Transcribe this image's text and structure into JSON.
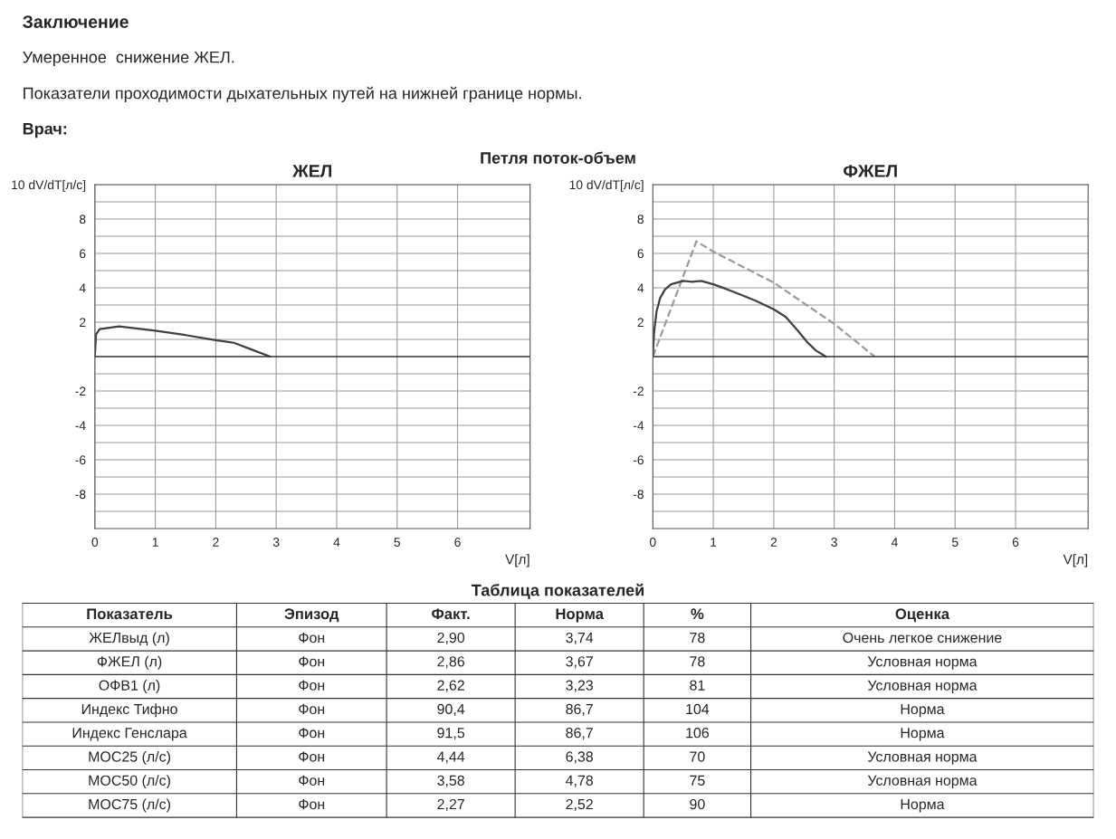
{
  "chart_data": [
    {
      "type": "other",
      "title": "Заключение",
      "annotations": [
        "Умеренное  снижение ЖЕЛ.",
        "Показатели проходимости дыхательных путей на нижней границе нормы.",
        "Врач:"
      ]
    },
    {
      "type": "line",
      "title": "ЖЕЛ",
      "xlabel": "V[л]",
      "annotations": [
        "Петля поток-объем"
      ],
      "xlim": [
        0,
        7.2
      ],
      "ylim": [
        -10,
        10
      ],
      "xticks": [
        0,
        1,
        2,
        3,
        4,
        5,
        6
      ],
      "yticks": [
        {
          "value": -9,
          "label": null
        },
        -8,
        {
          "value": -7,
          "label": null
        },
        -6,
        {
          "value": -5,
          "label": null
        },
        -4,
        {
          "value": -3,
          "label": null
        },
        -2,
        {
          "value": -1,
          "label": null
        },
        {
          "value": 1,
          "label": null
        },
        2,
        {
          "value": 3,
          "label": null
        },
        4,
        {
          "value": 5,
          "label": null
        },
        6,
        {
          "value": 7,
          "label": null
        },
        8,
        {
          "value": 9,
          "label": null
        },
        {
          "value": 10,
          "label": "10 dV/dT[л/с]"
        }
      ],
      "grid": true,
      "ref_lines": [
        {
          "axis": "y",
          "value": 0,
          "color": "#303030"
        }
      ],
      "series": [
        {
          "color": "#404040",
          "line_style": "solid",
          "x": [
            0,
            0.02,
            0.08,
            0.4,
            1.0,
            1.5,
            2.0,
            2.3,
            2.6,
            2.9
          ],
          "values": [
            0,
            1.3,
            1.6,
            1.75,
            1.5,
            1.25,
            0.95,
            0.8,
            0.4,
            0
          ]
        }
      ]
    },
    {
      "type": "line",
      "title": "ФЖЕЛ",
      "xlabel": "V[л]",
      "xlim": [
        0,
        7.2
      ],
      "ylim": [
        -10,
        10
      ],
      "xticks": [
        0,
        1,
        2,
        3,
        4,
        5,
        6
      ],
      "yticks": [
        {
          "value": -9,
          "label": null
        },
        -8,
        {
          "value": -7,
          "label": null
        },
        -6,
        {
          "value": -5,
          "label": null
        },
        -4,
        {
          "value": -3,
          "label": null
        },
        -2,
        {
          "value": -1,
          "label": null
        },
        {
          "value": 1,
          "label": null
        },
        2,
        {
          "value": 3,
          "label": null
        },
        4,
        {
          "value": 5,
          "label": null
        },
        6,
        {
          "value": 7,
          "label": null
        },
        8,
        {
          "value": 9,
          "label": null
        },
        {
          "value": 10,
          "label": "10 dV/dT[л/с]"
        }
      ],
      "grid": true,
      "ref_lines": [
        {
          "axis": "y",
          "value": 0,
          "color": "#303030"
        }
      ],
      "series": [
        {
          "color": "#9a9a9a",
          "line_style": "dashed",
          "x": [
            0,
            0.72,
            1.0,
            2.0,
            3.0,
            3.67
          ],
          "values": [
            0,
            6.7,
            6.1,
            4.3,
            1.9,
            0
          ]
        },
        {
          "color": "#404040",
          "line_style": "solid",
          "x": [
            0,
            0.02,
            0.06,
            0.12,
            0.2,
            0.3,
            0.5,
            0.65,
            0.8,
            1.0,
            1.2,
            1.45,
            1.7,
            2.0,
            2.2,
            2.4,
            2.55,
            2.7,
            2.86
          ],
          "values": [
            0,
            1.4,
            2.6,
            3.4,
            3.9,
            4.2,
            4.4,
            4.35,
            4.4,
            4.2,
            3.95,
            3.6,
            3.25,
            2.75,
            2.3,
            1.5,
            0.85,
            0.35,
            0
          ]
        }
      ]
    },
    {
      "type": "other",
      "title": "Таблица показателей",
      "annotations": [
        "Показатель",
        "Эпизод",
        "Факт.",
        "Норма",
        "%",
        "Оценка",
        "ЖЕЛвыд (л)",
        "Фон",
        "2,90",
        "3,74",
        "78",
        "Очень легкое снижение",
        "ФЖЕЛ (л)",
        "Фон",
        "2,86",
        "3,67",
        "78",
        "Условная норма",
        "ОФВ1 (л)",
        "Фон",
        "2,62",
        "3,23",
        "81",
        "Условная норма",
        "Индекс Тифно",
        "Фон",
        "90,4",
        "86,7",
        "104",
        "Норма",
        "Индекс Генслара",
        "Фон",
        "91,5",
        "86,7",
        "106",
        "Норма",
        "МОС25 (л/с)",
        "Фон",
        "4,44",
        "6,38",
        "70",
        "Условная норма",
        "МОС50 (л/с)",
        "Фон",
        "3,58",
        "4,78",
        "75",
        "Условная норма",
        "МОС75 (л/с)",
        "Фон",
        "2,27",
        "2,52",
        "90",
        "Норма"
      ]
    }
  ]
}
